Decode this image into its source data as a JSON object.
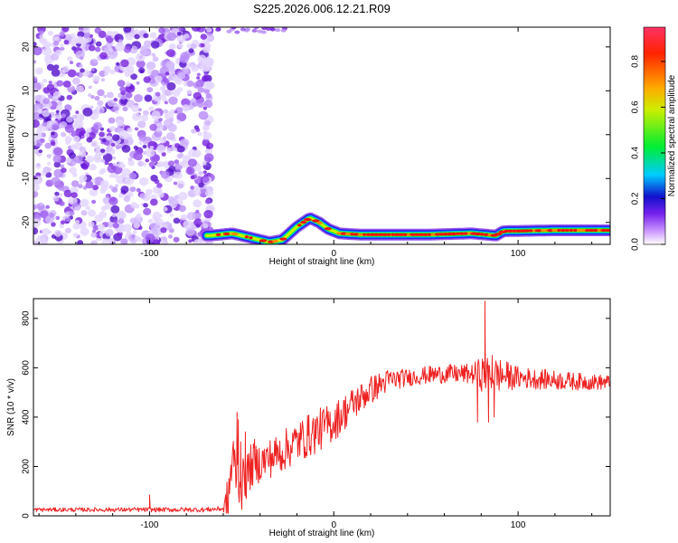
{
  "title": "S225.2026.006.12.21.R09",
  "colors": {
    "series": "#ee2222",
    "frame": "#000000"
  },
  "chart_data": [
    {
      "type": "heatmap",
      "xlabel": "Height of straight line (km)",
      "ylabel": "Frequency (Hz)",
      "xlim": [
        -163,
        150
      ],
      "ylim": [
        -25,
        24.5
      ],
      "xticks": [
        -100,
        0,
        100
      ],
      "yticks": [
        20,
        10,
        0,
        -10,
        -20
      ],
      "colorbar": {
        "label": "Normalized spectral amplitude",
        "ticks": [
          0.0,
          0.2,
          0.4,
          0.6,
          0.8
        ],
        "range": [
          0,
          0.95
        ],
        "colors": [
          "#ffffff",
          "#cc99ff",
          "#7722ee",
          "#1111cc",
          "#00ccff",
          "#00ee33",
          "#ccee00",
          "#ffaa00",
          "#ff2200",
          "#ff3366"
        ]
      },
      "features": {
        "noise_region_x": [
          -163,
          -67
        ],
        "band_centers": [
          [
            -67,
            -23
          ],
          [
            -55,
            -22.5
          ],
          [
            -45,
            -23.5
          ],
          [
            -35,
            -24.5
          ],
          [
            -28,
            -24
          ],
          [
            -20,
            -21
          ],
          [
            -13,
            -19
          ],
          [
            -8,
            -20
          ],
          [
            -3,
            -21.5
          ],
          [
            3,
            -22.5
          ],
          [
            15,
            -22.8
          ],
          [
            50,
            -22.8
          ],
          [
            75,
            -22.5
          ],
          [
            88,
            -23
          ],
          [
            92,
            -22
          ],
          [
            120,
            -21.8
          ],
          [
            150,
            -21.8
          ]
        ]
      }
    },
    {
      "type": "line",
      "xlabel": "Height of straight line (km)",
      "ylabel": "SNR (10 * v/v)",
      "xlim": [
        -163,
        150
      ],
      "ylim": [
        0,
        880
      ],
      "xticks": [
        -100,
        0,
        100
      ],
      "yticks": [
        0,
        200,
        400,
        600,
        800
      ],
      "series": [
        {
          "color": "#ee2222",
          "trend": [
            [
              -163,
              25
            ],
            [
              -110,
              25
            ],
            [
              -70,
              25
            ],
            [
              -58,
              30
            ],
            [
              -55,
              230
            ],
            [
              -50,
              120
            ],
            [
              -45,
              200
            ],
            [
              -30,
              250
            ],
            [
              -20,
              300
            ],
            [
              -10,
              340
            ],
            [
              0,
              380
            ],
            [
              10,
              450
            ],
            [
              20,
              510
            ],
            [
              30,
              550
            ],
            [
              40,
              560
            ],
            [
              50,
              570
            ],
            [
              60,
              575
            ],
            [
              70,
              575
            ],
            [
              80,
              575
            ],
            [
              90,
              570
            ],
            [
              100,
              560
            ],
            [
              110,
              555
            ],
            [
              120,
              550
            ],
            [
              130,
              545
            ],
            [
              150,
              540
            ]
          ],
          "noise": [
            [
              -163,
              8
            ],
            [
              -60,
              10
            ],
            [
              -58,
              120
            ],
            [
              -40,
              80
            ],
            [
              -10,
              90
            ],
            [
              10,
              70
            ],
            [
              40,
              35
            ],
            [
              75,
              40
            ],
            [
              80,
              70
            ],
            [
              90,
              70
            ],
            [
              100,
              45
            ],
            [
              150,
              30
            ]
          ],
          "spikes": [
            [
              -52.5,
              420
            ],
            [
              -51.8,
              390
            ],
            [
              -50.5,
              300
            ],
            [
              -48,
              340
            ],
            [
              -43,
              310
            ],
            [
              78,
              380
            ],
            [
              82,
              870
            ],
            [
              84,
              380
            ],
            [
              86,
              650
            ],
            [
              87,
              400
            ],
            [
              -100,
              85
            ]
          ]
        }
      ]
    }
  ]
}
